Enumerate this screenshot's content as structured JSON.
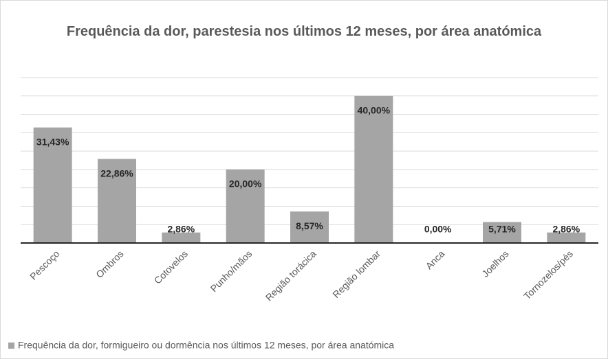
{
  "chart_data": {
    "type": "bar",
    "title": "Frequência da dor, parestesia nos últimos 12 meses, por área anatómica",
    "categories": [
      "Pescoço",
      "Ombros",
      "Cotovelos",
      "Punho/mãos",
      "Região torácica",
      "Região lombar",
      "Anca",
      "Joelhos",
      "Tornozelos/pés"
    ],
    "series": [
      {
        "name": "Frequência da dor, formigueiro ou dormência nos últimos 12 meses, por área anatómica",
        "color": "#a5a5a5",
        "values": [
          31.43,
          22.86,
          2.86,
          20,
          8.57,
          40,
          0,
          5.71,
          2.86
        ],
        "value_labels": [
          "31,43%",
          "22,86%",
          "2,86%",
          "20,00%",
          "8,57%",
          "40,00%",
          "0,00%",
          "5,71%",
          "2,86%"
        ]
      }
    ],
    "ylim": [
      0,
      45
    ],
    "yticks": [
      0,
      5,
      10,
      15,
      20,
      25,
      30,
      35,
      40,
      45
    ],
    "grid": true,
    "legend": "bottom"
  }
}
